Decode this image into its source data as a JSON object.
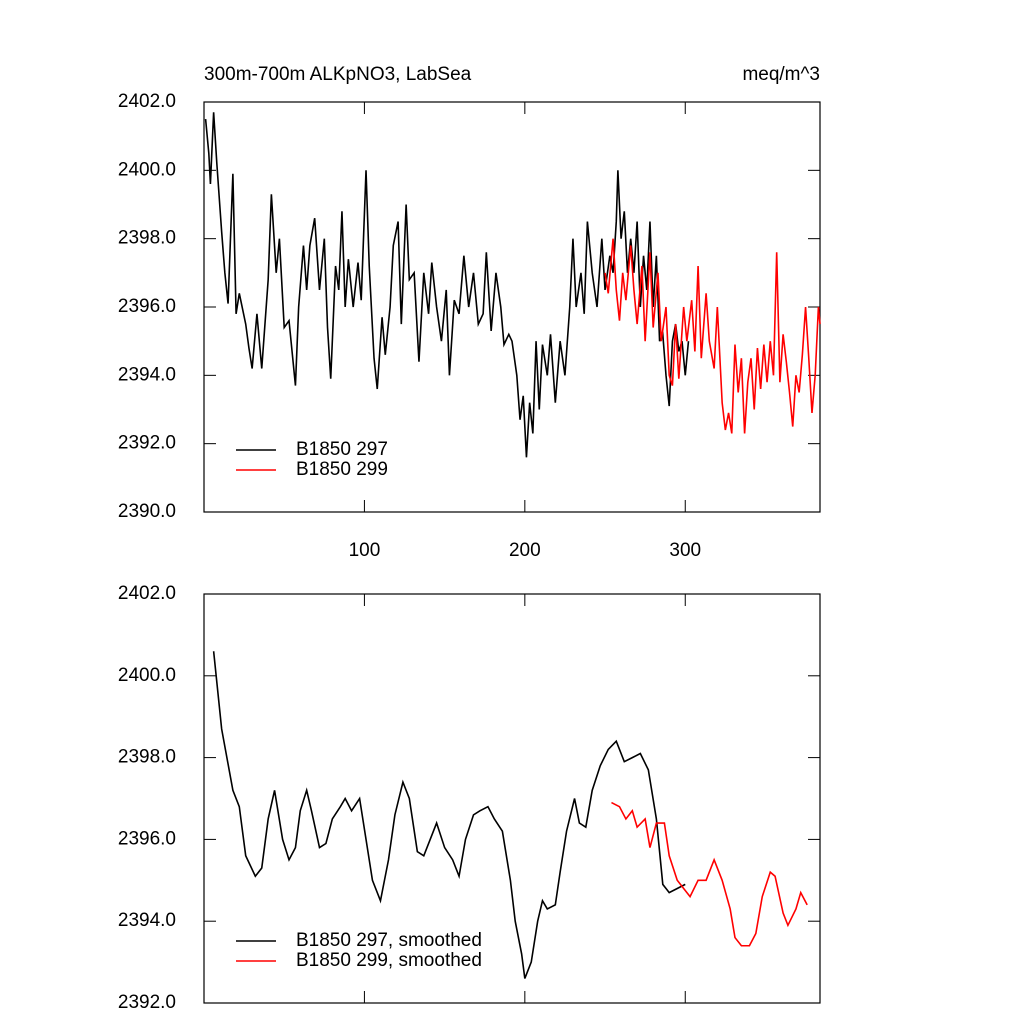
{
  "chart_data": [
    {
      "type": "line",
      "title": "300m-700m ALKpNO3, LabSea",
      "units": "meq/m^3",
      "xlim": [
        0,
        384
      ],
      "xticks": [
        100,
        200,
        300
      ],
      "ylim": [
        2390,
        2402
      ],
      "yticks": [
        {
          "value": 2390,
          "label": "2390.0"
        },
        {
          "value": 2392,
          "label": "2392.0"
        },
        {
          "value": 2394,
          "label": "2394.0"
        },
        {
          "value": 2396,
          "label": "2396.0"
        },
        {
          "value": 2398,
          "label": "2398.0"
        },
        {
          "value": 2400,
          "label": "2400.0"
        },
        {
          "value": 2402,
          "label": "2402.0"
        }
      ],
      "legend": "lower left",
      "series": [
        {
          "name": "B1850 297",
          "color": "#000000",
          "x": [
            1,
            3,
            4,
            6,
            8,
            11,
            13,
            15,
            18,
            20,
            22,
            26,
            28,
            30,
            33,
            36,
            38,
            40,
            42,
            45,
            47,
            50,
            53,
            57,
            59,
            62,
            64,
            66,
            69,
            72,
            75,
            77,
            79,
            82,
            84,
            86,
            88,
            90,
            93,
            96,
            98,
            101,
            103,
            106,
            108,
            111,
            113,
            116,
            118,
            121,
            123,
            126,
            128,
            131,
            134,
            137,
            140,
            142,
            145,
            148,
            151,
            153,
            156,
            159,
            162,
            165,
            168,
            171,
            174,
            176,
            179,
            182,
            185,
            187,
            190,
            192,
            195,
            197,
            199,
            201,
            203,
            205,
            207,
            209,
            211,
            214,
            216,
            219,
            222,
            225,
            228,
            230,
            232,
            235,
            237,
            239,
            242,
            245,
            248,
            250,
            253,
            255,
            257,
            258,
            260,
            262,
            264,
            266,
            268,
            270,
            272,
            274,
            276,
            278,
            280,
            282,
            284,
            286,
            288,
            290,
            292,
            294,
            296,
            298,
            300,
            302
          ],
          "values": [
            2401.5,
            2400.5,
            2399.6,
            2401.7,
            2400.2,
            2398.2,
            2397.0,
            2396.1,
            2399.9,
            2395.8,
            2396.4,
            2395.5,
            2394.8,
            2394.2,
            2395.8,
            2394.2,
            2395.5,
            2396.8,
            2399.3,
            2397.0,
            2398.0,
            2395.4,
            2395.6,
            2393.7,
            2396.0,
            2397.8,
            2396.5,
            2397.8,
            2398.6,
            2396.5,
            2398.0,
            2395.4,
            2393.9,
            2397.2,
            2396.5,
            2398.8,
            2396.0,
            2397.4,
            2396.0,
            2397.3,
            2396.2,
            2400.0,
            2397.2,
            2394.5,
            2393.6,
            2395.7,
            2394.6,
            2396.0,
            2397.8,
            2398.5,
            2395.5,
            2399.0,
            2396.8,
            2397.0,
            2394.4,
            2397.0,
            2395.8,
            2397.3,
            2396.0,
            2395.0,
            2396.5,
            2394.0,
            2396.2,
            2395.8,
            2397.5,
            2396.0,
            2397.0,
            2395.5,
            2395.8,
            2397.6,
            2395.3,
            2397.0,
            2396.0,
            2394.9,
            2395.2,
            2395.0,
            2394.0,
            2392.7,
            2393.4,
            2391.6,
            2393.2,
            2392.3,
            2395.0,
            2393.0,
            2394.9,
            2394.0,
            2395.2,
            2393.2,
            2395.0,
            2394.0,
            2396.0,
            2398.0,
            2396.0,
            2397.0,
            2395.8,
            2398.5,
            2397.0,
            2396.0,
            2398.0,
            2396.5,
            2397.5,
            2397.0,
            2398.5,
            2400.0,
            2398.0,
            2398.8,
            2397.0,
            2398.0,
            2397.0,
            2398.5,
            2396.0,
            2397.5,
            2396.5,
            2398.5,
            2396.0,
            2397.5,
            2395.0,
            2395.2,
            2394.0,
            2393.1,
            2395.0,
            2395.5,
            2394.7,
            2395.0,
            2394.0,
            2395.0
          ]
        },
        {
          "name": "B1850 299",
          "color": "#ff0000",
          "x": [
            250,
            252,
            255,
            257,
            259,
            261,
            263,
            266,
            268,
            270,
            273,
            275,
            278,
            280,
            283,
            285,
            288,
            290,
            292,
            294,
            296,
            299,
            301,
            304,
            306,
            308,
            310,
            313,
            315,
            318,
            320,
            323,
            325,
            327,
            329,
            331,
            333,
            335,
            337,
            339,
            341,
            343,
            345,
            347,
            349,
            351,
            353,
            355,
            357,
            359,
            361,
            363,
            365,
            367,
            369,
            371,
            373,
            375,
            377,
            379,
            381,
            383,
            384
          ],
          "values": [
            2397.0,
            2396.4,
            2398.0,
            2396.5,
            2395.6,
            2397.0,
            2396.2,
            2397.8,
            2396.5,
            2395.5,
            2397.2,
            2395.0,
            2397.6,
            2395.4,
            2397.0,
            2395.0,
            2396.0,
            2394.0,
            2393.7,
            2395.5,
            2393.9,
            2396.0,
            2395.0,
            2396.2,
            2394.7,
            2397.2,
            2394.5,
            2396.4,
            2395.0,
            2394.2,
            2396.0,
            2393.2,
            2392.4,
            2392.9,
            2392.3,
            2394.9,
            2393.5,
            2394.5,
            2392.3,
            2393.8,
            2394.5,
            2393.0,
            2394.8,
            2393.6,
            2394.9,
            2393.8,
            2395.0,
            2394.0,
            2397.6,
            2393.8,
            2395.2,
            2394.4,
            2393.5,
            2392.5,
            2394.0,
            2393.5,
            2394.6,
            2396.0,
            2394.5,
            2392.9,
            2394.0,
            2396.0,
            2395.5
          ]
        }
      ]
    },
    {
      "type": "line",
      "xlim": [
        0,
        384
      ],
      "xticks": [
        100,
        200,
        300
      ],
      "ylim": [
        2392,
        2402
      ],
      "yticks": [
        {
          "value": 2392,
          "label": "2392.0"
        },
        {
          "value": 2394,
          "label": "2394.0"
        },
        {
          "value": 2396,
          "label": "2396.0"
        },
        {
          "value": 2398,
          "label": "2398.0"
        },
        {
          "value": 2400,
          "label": "2400.0"
        },
        {
          "value": 2402,
          "label": "2402.0"
        }
      ],
      "legend": "lower left",
      "series": [
        {
          "name": "B1850 297, smoothed",
          "color": "#000000",
          "x": [
            6,
            11,
            18,
            22,
            26,
            32,
            36,
            40,
            44,
            49,
            53,
            57,
            60,
            64,
            67,
            72,
            76,
            80,
            85,
            88,
            92,
            97,
            101,
            105,
            110,
            115,
            119,
            124,
            128,
            133,
            137,
            141,
            145,
            150,
            155,
            159,
            163,
            168,
            172,
            177,
            181,
            186,
            191,
            194,
            198,
            200,
            204,
            208,
            211,
            214,
            219,
            222,
            226,
            231,
            234,
            238,
            242,
            247,
            252,
            257,
            262,
            267,
            272,
            277,
            282,
            286,
            290,
            295,
            300
          ],
          "values": [
            2400.6,
            2398.7,
            2397.2,
            2396.8,
            2395.6,
            2395.1,
            2395.3,
            2396.5,
            2397.2,
            2396.0,
            2395.5,
            2395.8,
            2396.7,
            2397.2,
            2396.7,
            2395.8,
            2395.9,
            2396.5,
            2396.8,
            2397.0,
            2396.7,
            2397.0,
            2396.0,
            2395.0,
            2394.5,
            2395.5,
            2396.6,
            2397.4,
            2397.0,
            2395.7,
            2395.6,
            2396.0,
            2396.4,
            2395.8,
            2395.5,
            2395.1,
            2396.0,
            2396.6,
            2396.7,
            2396.8,
            2396.5,
            2396.2,
            2395.0,
            2394.0,
            2393.2,
            2392.6,
            2393.0,
            2394.0,
            2394.5,
            2394.3,
            2394.4,
            2395.2,
            2396.2,
            2397.0,
            2396.4,
            2396.3,
            2397.2,
            2397.8,
            2398.2,
            2398.4,
            2397.9,
            2398.0,
            2398.1,
            2397.7,
            2396.5,
            2394.9,
            2394.7,
            2394.8,
            2394.9
          ]
        },
        {
          "name": "B1850 299, smoothed",
          "color": "#ff0000",
          "x": [
            254,
            259,
            263,
            267,
            270,
            275,
            278,
            282,
            287,
            290,
            295,
            303,
            308,
            313,
            318,
            323,
            328,
            331,
            335,
            340,
            344,
            348,
            353,
            356,
            361,
            364,
            369,
            372,
            376
          ],
          "values": [
            2396.9,
            2396.8,
            2396.5,
            2396.7,
            2396.3,
            2396.5,
            2395.8,
            2396.4,
            2396.4,
            2395.6,
            2395.0,
            2394.6,
            2395.0,
            2395.0,
            2395.5,
            2395.0,
            2394.3,
            2393.6,
            2393.4,
            2393.4,
            2393.7,
            2394.6,
            2395.2,
            2395.1,
            2394.2,
            2393.9,
            2394.3,
            2394.7,
            2394.4
          ]
        }
      ]
    }
  ]
}
